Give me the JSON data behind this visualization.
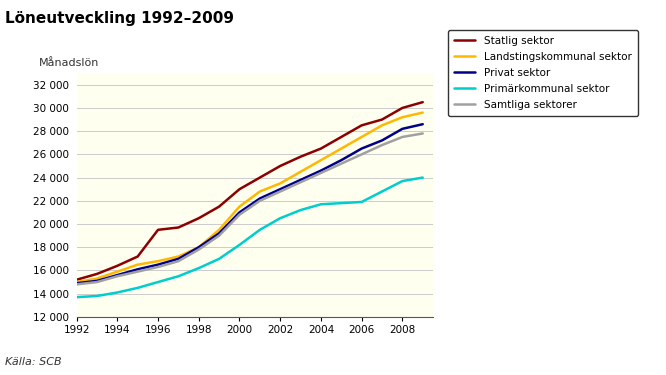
{
  "title": "Löneutveckling 1992–2009",
  "ylabel": "Månadslön",
  "source": "Källa: SCB",
  "background_color": "#FFFFF0",
  "figure_bg": "#FFFFFF",
  "ylim": [
    12000,
    33000
  ],
  "yticks": [
    12000,
    14000,
    16000,
    18000,
    20000,
    22000,
    24000,
    26000,
    28000,
    30000,
    32000
  ],
  "xticks": [
    1992,
    1994,
    1996,
    1998,
    2000,
    2002,
    2004,
    2006,
    2008
  ],
  "xlim": [
    1992,
    2009.5
  ],
  "series": {
    "Statlig sektor": {
      "color": "#8B0000",
      "linewidth": 1.8,
      "data": {
        "1992": 15200,
        "1993": 15700,
        "1994": 16400,
        "1995": 17200,
        "1996": 19500,
        "1997": 19700,
        "1998": 20500,
        "1999": 21500,
        "2000": 23000,
        "2001": 24000,
        "2002": 25000,
        "2003": 25800,
        "2004": 26500,
        "2005": 27500,
        "2006": 28500,
        "2007": 29000,
        "2008": 30000,
        "2009": 30500
      }
    },
    "Landstingskommunal sektor": {
      "color": "#FFB800",
      "linewidth": 1.8,
      "data": {
        "1992": 15000,
        "1993": 15300,
        "1994": 15900,
        "1995": 16500,
        "1996": 16800,
        "1997": 17200,
        "1998": 18000,
        "1999": 19500,
        "2000": 21500,
        "2001": 22800,
        "2002": 23500,
        "2003": 24500,
        "2004": 25500,
        "2005": 26500,
        "2006": 27500,
        "2007": 28500,
        "2008": 29200,
        "2009": 29600
      }
    },
    "Privat sektor": {
      "color": "#00008B",
      "linewidth": 1.8,
      "data": {
        "1992": 14900,
        "1993": 15100,
        "1994": 15600,
        "1995": 16100,
        "1996": 16500,
        "1997": 17000,
        "1998": 18000,
        "1999": 19200,
        "2000": 21000,
        "2001": 22200,
        "2002": 23000,
        "2003": 23800,
        "2004": 24600,
        "2005": 25500,
        "2006": 26500,
        "2007": 27200,
        "2008": 28200,
        "2009": 28600
      }
    },
    "Primärkommunal sektor": {
      "color": "#00CDCD",
      "linewidth": 1.8,
      "data": {
        "1992": 13700,
        "1993": 13800,
        "1994": 14100,
        "1995": 14500,
        "1996": 15000,
        "1997": 15500,
        "1998": 16200,
        "1999": 17000,
        "2000": 18200,
        "2001": 19500,
        "2002": 20500,
        "2003": 21200,
        "2004": 21700,
        "2005": 21800,
        "2006": 21900,
        "2007": 22800,
        "2008": 23700,
        "2009": 24000
      }
    },
    "Samtliga sektorer": {
      "color": "#A0A0A0",
      "linewidth": 1.8,
      "data": {
        "1992": 14800,
        "1993": 15000,
        "1994": 15500,
        "1995": 15900,
        "1996": 16300,
        "1997": 16800,
        "1998": 17800,
        "1999": 19000,
        "2000": 20800,
        "2001": 22000,
        "2002": 22800,
        "2003": 23600,
        "2004": 24400,
        "2005": 25200,
        "2006": 26000,
        "2007": 26800,
        "2008": 27500,
        "2009": 27800
      }
    }
  }
}
